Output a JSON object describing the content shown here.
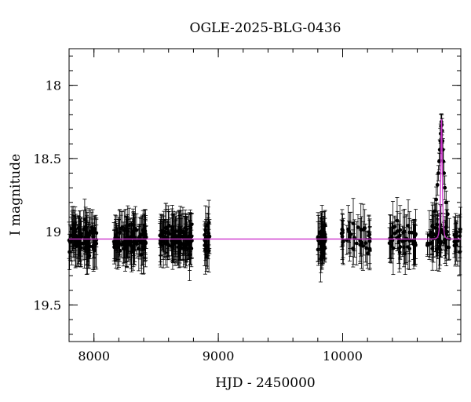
{
  "chart_data": {
    "type": "scatter",
    "title": "OGLE-2025-BLG-0436",
    "xlabel": "HJD - 2450000",
    "ylabel": "I magnitude",
    "xlim": [
      7800,
      10950
    ],
    "ylim": [
      19.75,
      17.75
    ],
    "y_inverted": true,
    "x_ticks": [
      8000,
      9000,
      10000
    ],
    "y_ticks": [
      18,
      18.5,
      19,
      19.5
    ],
    "x_tick_labels": [
      "8000",
      "9000",
      "10000"
    ],
    "y_tick_labels": [
      "18",
      "18.5",
      "19",
      "19.5"
    ],
    "x_minor_step": 200,
    "y_minor_step": 0.1,
    "grid": false,
    "legend": "none",
    "colors": {
      "data": "#000000",
      "model": "#cc33cc"
    },
    "series": [
      {
        "kind": "observations",
        "mark": "filled-circle-with-errorbars",
        "baseline_mag": 19.05,
        "scatter_mag": 0.07,
        "typical_error_mag": 0.12,
        "seasons": [
          {
            "x_range": [
              7800,
              8020
            ],
            "count": 90
          },
          {
            "x_range": [
              8160,
              8420
            ],
            "count": 100
          },
          {
            "x_range": [
              8530,
              8790
            ],
            "count": 110
          },
          {
            "x_range": [
              8890,
              8930
            ],
            "count": 20
          },
          {
            "x_range": [
              9800,
              9860
            ],
            "count": 45
          },
          {
            "x_range": [
              9990,
              10230
            ],
            "count": 40
          },
          {
            "x_range": [
              10360,
              10590
            ],
            "count": 45
          },
          {
            "x_range": [
              10680,
              10950
            ],
            "count": 60
          }
        ]
      },
      {
        "kind": "model",
        "mark": "line",
        "baseline_mag": 19.05,
        "peak_x": 10795,
        "peak_mag": 18.25,
        "t_E_days": 10
      }
    ],
    "event_points": [
      {
        "x": 10740,
        "y": 18.86
      },
      {
        "x": 10752,
        "y": 18.78
      },
      {
        "x": 10762,
        "y": 18.68
      },
      {
        "x": 10770,
        "y": 18.6
      },
      {
        "x": 10776,
        "y": 18.52
      },
      {
        "x": 10781,
        "y": 18.44
      },
      {
        "x": 10785,
        "y": 18.38
      },
      {
        "x": 10788,
        "y": 18.33
      },
      {
        "x": 10791,
        "y": 18.28
      },
      {
        "x": 10794,
        "y": 18.25
      },
      {
        "x": 10797,
        "y": 18.27
      },
      {
        "x": 10800,
        "y": 18.31
      },
      {
        "x": 10803,
        "y": 18.38
      },
      {
        "x": 10806,
        "y": 18.44
      },
      {
        "x": 10810,
        "y": 18.52
      },
      {
        "x": 10815,
        "y": 18.6
      },
      {
        "x": 10822,
        "y": 18.7
      },
      {
        "x": 10832,
        "y": 18.8
      },
      {
        "x": 10845,
        "y": 18.88
      }
    ]
  }
}
